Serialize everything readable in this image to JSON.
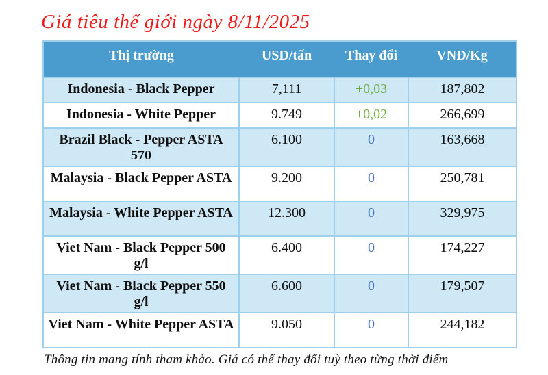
{
  "title": "Giá tiêu thế giới ngày 8/11/2025",
  "table": {
    "headers": {
      "market": "Thị trường",
      "usd": "USD/tấn",
      "change": "Thay đổi",
      "vnd": "VNĐ/Kg"
    },
    "rows": [
      {
        "market": "Indonesia - Black Pepper",
        "usd": "7,111",
        "change": "+0,03",
        "vnd": "187,802"
      },
      {
        "market": "Indonesia - White Pepper",
        "usd": "9.749",
        "change": "+0,02",
        "vnd": "266,699"
      },
      {
        "market": "Brazil Black - Pepper ASTA 570",
        "usd": "6.100",
        "change": "0",
        "vnd": "163,668"
      },
      {
        "market": "Malaysia - Black Pepper ASTA",
        "usd": "9.200",
        "change": "0",
        "vnd": "250,781"
      },
      {
        "market": "Malaysia - White Pepper ASTA",
        "usd": "12.300",
        "change": "0",
        "vnd": "329,975"
      },
      {
        "market": "Viet Nam - Black Pepper 500 g/l",
        "usd": "6.400",
        "change": "0",
        "vnd": "174,227"
      },
      {
        "market": "Viet Nam - Black Pepper 550 g/l",
        "usd": "6.600",
        "change": "0",
        "vnd": "179,507"
      },
      {
        "market": "Viet Nam - White Pepper ASTA",
        "usd": "9.050",
        "change": "0",
        "vnd": "244,182"
      }
    ]
  },
  "footer": "Thông tin mang tính tham khảo. Giá có thể thay đổi tuỳ theo từng thời điểm",
  "colors": {
    "title_red": "#ee1d1d",
    "header_bg": "#4a9bce",
    "header_text": "#ffffff",
    "row_alt_bg": "#cfe8f5",
    "grid_border": "#9fd0eb",
    "change_positive": "#70ad47",
    "change_zero": "#4472c4",
    "body_text": "#101010"
  }
}
